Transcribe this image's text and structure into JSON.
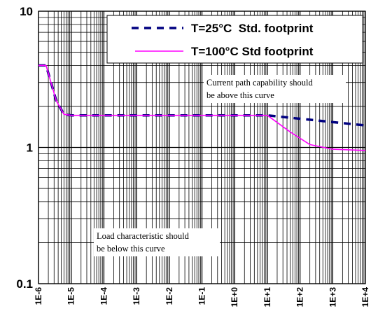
{
  "chart_data": {
    "type": "line",
    "title": "",
    "xlabel": "",
    "ylabel": "",
    "x_scale": "log",
    "y_scale": "log",
    "xlim": [
      1e-06,
      10000
    ],
    "ylim": [
      0.1,
      10
    ],
    "grid": true,
    "legend_position": "top-right",
    "x_tick_labels": [
      "1E-6",
      "1E-5",
      "1E-4",
      "1E-3",
      "1E-2",
      "1E-1",
      "1E+0",
      "1E+1",
      "1E+2",
      "1E+3",
      "1E+4"
    ],
    "y_tick_labels": [
      "10",
      "1",
      "0.1"
    ],
    "series": [
      {
        "name": "T=25°C  Std. footprint",
        "color": "#000080",
        "style": "dashed",
        "x": [
          1e-06,
          1.7e-06,
          3.5e-06,
          6e-06,
          1e-05,
          0.1,
          10,
          10000
        ],
        "y": [
          4.0,
          4.0,
          2.2,
          1.75,
          1.72,
          1.72,
          1.72,
          1.45
        ]
      },
      {
        "name": "T=100°C Std footprint",
        "color": "#ff00ff",
        "style": "solid",
        "x": [
          1e-06,
          1.7e-06,
          3.5e-06,
          6e-06,
          1e-05,
          0.1,
          10,
          50,
          200,
          1000,
          10000
        ],
        "y": [
          4.0,
          4.0,
          2.2,
          1.75,
          1.72,
          1.72,
          1.72,
          1.3,
          1.05,
          0.97,
          0.95
        ]
      }
    ],
    "annotations": [
      {
        "lines": [
          "Current path capability should",
          "be above this curve"
        ]
      },
      {
        "lines": [
          "Load characteristic should",
          "be below this curve"
        ]
      }
    ]
  }
}
